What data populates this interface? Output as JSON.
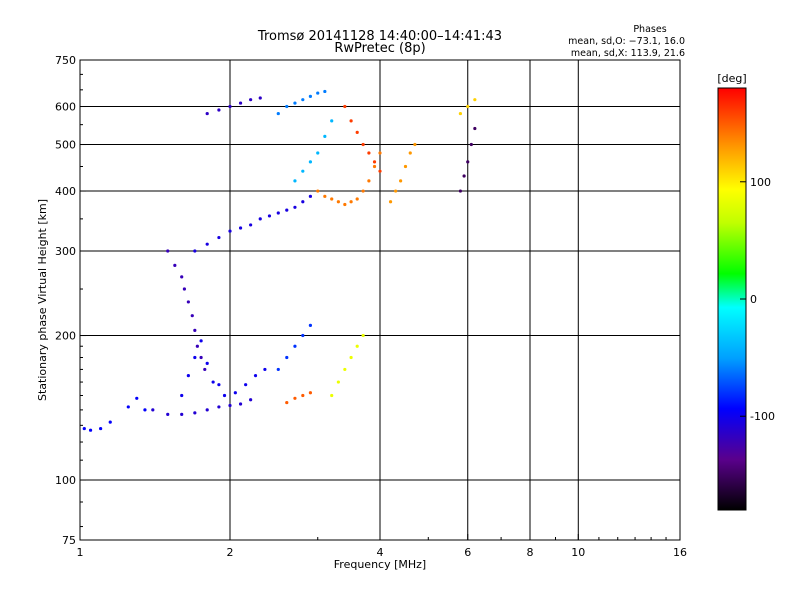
{
  "chart_data": {
    "type": "scatter",
    "title": "Tromsø 20141128 14:40:00–14:41:43",
    "subtitle": "RwPretec (8p)",
    "xlabel": "Frequency [MHz]",
    "ylabel": "Stationary phase Virtual Height [km]",
    "x_scale": "log",
    "y_scale": "log",
    "xlim": [
      1,
      16
    ],
    "ylim": [
      75,
      750
    ],
    "x_ticks": [
      {
        "value": 1,
        "label": "1"
      },
      {
        "value": 2,
        "label": "2"
      },
      {
        "value": 4,
        "label": "4"
      },
      {
        "value": 6,
        "label": "6"
      },
      {
        "value": 8,
        "label": "8"
      },
      {
        "value": 10,
        "label": "10"
      },
      {
        "value": 16,
        "label": "16"
      }
    ],
    "y_ticks": [
      {
        "value": 75,
        "label": "75"
      },
      {
        "value": 100,
        "label": "100"
      },
      {
        "value": 200,
        "label": "200"
      },
      {
        "value": 300,
        "label": "300"
      },
      {
        "value": 400,
        "label": "400"
      },
      {
        "value": 500,
        "label": "500"
      },
      {
        "value": 600,
        "label": "600"
      },
      {
        "value": 750,
        "label": "750"
      }
    ],
    "x_gridlines": [
      2,
      4,
      6,
      8,
      10
    ],
    "y_gridlines": [
      100,
      200,
      300,
      400,
      500,
      600
    ],
    "phase_info": {
      "title": "Phases",
      "line1": "mean, sd,O: −73.1, 16.0",
      "line2": "mean, sd,X: 113.9, 21.6"
    },
    "colorbar": {
      "label": "[deg]",
      "range": [
        -180,
        180
      ],
      "ticks": [
        {
          "value": 100,
          "label": "100"
        },
        {
          "value": 0,
          "label": "0"
        },
        {
          "value": -100,
          "label": "-100"
        }
      ]
    },
    "series": [
      {
        "phase": -95,
        "points": [
          [
            1.02,
            128
          ],
          [
            1.05,
            127
          ],
          [
            1.1,
            128
          ],
          [
            1.15,
            132
          ],
          [
            1.25,
            142
          ],
          [
            1.3,
            148
          ],
          [
            1.35,
            140
          ]
        ]
      },
      {
        "phase": -110,
        "points": [
          [
            1.4,
            140
          ],
          [
            1.5,
            137
          ],
          [
            1.6,
            137
          ],
          [
            1.7,
            138
          ],
          [
            1.8,
            140
          ],
          [
            1.9,
            142
          ],
          [
            2.0,
            143
          ],
          [
            2.1,
            144
          ],
          [
            2.2,
            147
          ]
        ]
      },
      {
        "phase": -100,
        "points": [
          [
            1.6,
            150
          ],
          [
            1.65,
            165
          ],
          [
            1.7,
            180
          ],
          [
            1.75,
            195
          ],
          [
            1.8,
            175
          ],
          [
            1.85,
            160
          ],
          [
            1.9,
            158
          ],
          [
            1.95,
            150
          ],
          [
            2.05,
            152
          ],
          [
            2.15,
            158
          ],
          [
            2.25,
            165
          ],
          [
            2.35,
            170
          ]
        ]
      },
      {
        "phase": -120,
        "points": [
          [
            1.5,
            300
          ],
          [
            1.55,
            280
          ],
          [
            1.6,
            265
          ],
          [
            1.62,
            250
          ],
          [
            1.65,
            235
          ],
          [
            1.68,
            220
          ],
          [
            1.7,
            205
          ],
          [
            1.72,
            190
          ],
          [
            1.75,
            180
          ],
          [
            1.78,
            170
          ]
        ]
      },
      {
        "phase": -105,
        "points": [
          [
            1.7,
            300
          ],
          [
            1.8,
            310
          ],
          [
            1.9,
            320
          ],
          [
            2.0,
            330
          ],
          [
            2.1,
            335
          ],
          [
            2.2,
            340
          ],
          [
            2.3,
            350
          ],
          [
            2.4,
            355
          ],
          [
            2.5,
            360
          ],
          [
            2.6,
            365
          ],
          [
            2.7,
            370
          ],
          [
            2.8,
            380
          ],
          [
            2.9,
            390
          ]
        ]
      },
      {
        "phase": -115,
        "points": [
          [
            1.8,
            580
          ],
          [
            1.9,
            590
          ],
          [
            2.0,
            600
          ],
          [
            2.1,
            610
          ],
          [
            2.2,
            620
          ],
          [
            2.3,
            625
          ]
        ]
      },
      {
        "phase": -60,
        "points": [
          [
            2.5,
            580
          ],
          [
            2.6,
            600
          ],
          [
            2.7,
            610
          ],
          [
            2.8,
            620
          ],
          [
            2.9,
            630
          ],
          [
            3.0,
            640
          ],
          [
            3.1,
            645
          ]
        ]
      },
      {
        "phase": -40,
        "points": [
          [
            2.7,
            420
          ],
          [
            2.8,
            440
          ],
          [
            2.9,
            460
          ],
          [
            3.0,
            480
          ],
          [
            3.1,
            520
          ],
          [
            3.2,
            560
          ]
        ]
      },
      {
        "phase": 140,
        "points": [
          [
            3.0,
            400
          ],
          [
            3.1,
            390
          ],
          [
            3.2,
            385
          ],
          [
            3.3,
            380
          ],
          [
            3.4,
            375
          ],
          [
            3.5,
            380
          ],
          [
            3.6,
            385
          ],
          [
            3.7,
            400
          ],
          [
            3.8,
            420
          ],
          [
            3.9,
            450
          ],
          [
            4.0,
            480
          ]
        ]
      },
      {
        "phase": 160,
        "points": [
          [
            3.4,
            600
          ],
          [
            3.5,
            560
          ],
          [
            3.6,
            530
          ],
          [
            3.7,
            500
          ],
          [
            3.8,
            480
          ],
          [
            3.9,
            460
          ],
          [
            4.0,
            440
          ]
        ]
      },
      {
        "phase": 130,
        "points": [
          [
            4.2,
            380
          ],
          [
            4.3,
            400
          ],
          [
            4.4,
            420
          ],
          [
            4.5,
            450
          ],
          [
            4.6,
            480
          ],
          [
            4.7,
            500
          ]
        ]
      },
      {
        "phase": 85,
        "points": [
          [
            3.2,
            150
          ],
          [
            3.3,
            160
          ],
          [
            3.4,
            170
          ],
          [
            3.5,
            180
          ],
          [
            3.6,
            190
          ],
          [
            3.7,
            200
          ]
        ]
      },
      {
        "phase": 150,
        "points": [
          [
            2.6,
            145
          ],
          [
            2.7,
            148
          ],
          [
            2.8,
            150
          ],
          [
            2.9,
            152
          ]
        ]
      },
      {
        "phase": -80,
        "points": [
          [
            2.5,
            170
          ],
          [
            2.6,
            180
          ],
          [
            2.7,
            190
          ],
          [
            2.8,
            200
          ],
          [
            2.9,
            210
          ]
        ]
      },
      {
        "phase": -150,
        "points": [
          [
            5.8,
            400
          ],
          [
            5.9,
            430
          ],
          [
            6.0,
            460
          ],
          [
            6.1,
            500
          ],
          [
            6.2,
            540
          ]
        ]
      },
      {
        "phase": 110,
        "points": [
          [
            5.8,
            580
          ],
          [
            6.0,
            600
          ],
          [
            6.2,
            620
          ]
        ]
      }
    ]
  }
}
